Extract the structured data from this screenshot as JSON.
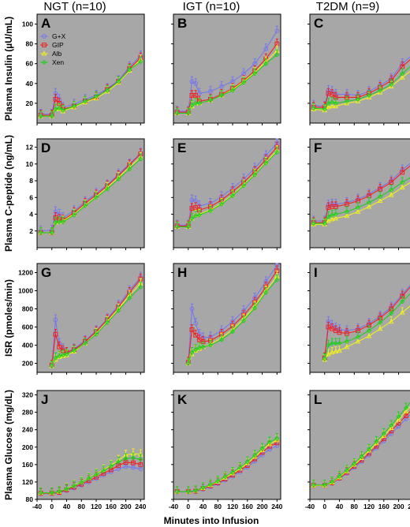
{
  "figure": {
    "column_titles": [
      "NGT (n=10)",
      "IGT (n=10)",
      "T2DM (n=9)"
    ],
    "row_labels": [
      "Plasma Insulin (µU/mL)",
      "Plasma C-peptide (ng/mL)",
      "ISR (pmoles/min)",
      "Plasma Glucose (mg/dL)"
    ],
    "x_label": "Minutes into Infusion",
    "x_ticks": [
      "-40",
      "0",
      "40",
      "80",
      "120",
      "160",
      "200",
      "240"
    ],
    "y_ticks": [
      [
        "20",
        "40",
        "60",
        "80",
        "100"
      ],
      [
        "2",
        "4",
        "6",
        "8",
        "10",
        "12"
      ],
      [
        "200",
        "400",
        "600",
        "800",
        "1000",
        "1200"
      ],
      [
        "80",
        "120",
        "160",
        "200",
        "240",
        "280",
        "320"
      ]
    ],
    "legend": [
      "G+X",
      "GIP",
      "Alb",
      "Xen"
    ],
    "colors": {
      "G+X": "#7777ee",
      "GIP": "#ee2222",
      "Alb": "#eeee22",
      "Xen": "#22cc22",
      "panel_bg": "#a7a7a7"
    }
  },
  "chart_data": [
    {
      "panel": "A",
      "type": "line",
      "group": "NGT (n=10)",
      "ylabel": "Plasma Insulin (µU/mL)",
      "ylim": [
        0,
        110
      ],
      "x": [
        -30,
        0,
        10,
        20,
        30,
        60,
        90,
        120,
        150,
        180,
        210,
        240
      ],
      "series": [
        {
          "name": "G+X",
          "values": [
            9,
            9,
            30,
            24,
            16,
            19,
            24,
            28,
            35,
            43,
            57,
            68
          ]
        },
        {
          "name": "GIP",
          "values": [
            8,
            8,
            24,
            20,
            14,
            17,
            22,
            26,
            34,
            42,
            55,
            66
          ]
        },
        {
          "name": "Alb",
          "values": [
            7,
            7,
            14,
            14,
            12,
            16,
            21,
            25,
            32,
            41,
            53,
            64
          ]
        },
        {
          "name": "Xen",
          "values": [
            7,
            7,
            14,
            15,
            13,
            17,
            22,
            27,
            33,
            42,
            54,
            62
          ]
        }
      ]
    },
    {
      "panel": "B",
      "type": "line",
      "group": "IGT (n=10)",
      "ylabel": "Plasma Insulin (µU/mL)",
      "ylim": [
        0,
        110
      ],
      "x": [
        -30,
        0,
        10,
        20,
        30,
        60,
        90,
        120,
        150,
        180,
        210,
        240
      ],
      "series": [
        {
          "name": "G+X",
          "values": [
            12,
            12,
            42,
            40,
            30,
            32,
            37,
            42,
            50,
            60,
            75,
            93
          ]
        },
        {
          "name": "GIP",
          "values": [
            11,
            11,
            28,
            28,
            22,
            24,
            29,
            35,
            43,
            53,
            65,
            80
          ]
        },
        {
          "name": "Alb",
          "values": [
            10,
            10,
            17,
            20,
            20,
            23,
            28,
            34,
            42,
            51,
            62,
            73
          ]
        },
        {
          "name": "Xen",
          "values": [
            10,
            10,
            18,
            20,
            20,
            23,
            28,
            33,
            41,
            50,
            60,
            69
          ]
        }
      ]
    },
    {
      "panel": "C",
      "type": "line",
      "group": "T2DM (n=9)",
      "ylabel": "Plasma Insulin (µU/mL)",
      "ylim": [
        0,
        110
      ],
      "x": [
        -30,
        0,
        10,
        20,
        30,
        60,
        90,
        120,
        150,
        180,
        210,
        240
      ],
      "series": [
        {
          "name": "G+X",
          "values": [
            18,
            17,
            33,
            32,
            29,
            29,
            28,
            32,
            38,
            45,
            60,
            70
          ]
        },
        {
          "name": "GIP",
          "values": [
            16,
            16,
            30,
            29,
            26,
            26,
            26,
            30,
            36,
            43,
            57,
            67
          ]
        },
        {
          "name": "Alb",
          "values": [
            14,
            13,
            16,
            17,
            17,
            20,
            22,
            26,
            31,
            37,
            46,
            55
          ]
        },
        {
          "name": "Xen",
          "values": [
            15,
            14,
            20,
            21,
            20,
            22,
            24,
            28,
            33,
            39,
            50,
            60
          ]
        }
      ]
    },
    {
      "panel": "D",
      "type": "line",
      "group": "NGT (n=10)",
      "ylabel": "Plasma C-peptide (ng/mL)",
      "ylim": [
        0,
        13
      ],
      "x": [
        -30,
        0,
        10,
        20,
        30,
        60,
        90,
        120,
        150,
        180,
        210,
        240
      ],
      "series": [
        {
          "name": "G+X",
          "values": [
            2.0,
            2.1,
            4.3,
            4.0,
            3.6,
            4.4,
            5.5,
            6.5,
            7.5,
            8.8,
            10.0,
            11.3
          ]
        },
        {
          "name": "GIP",
          "values": [
            1.8,
            1.8,
            3.6,
            3.4,
            3.3,
            4.2,
            5.3,
            6.3,
            7.4,
            8.6,
            9.9,
            11.2
          ]
        },
        {
          "name": "Alb",
          "values": [
            1.8,
            1.8,
            3.0,
            3.1,
            3.2,
            4.0,
            5.1,
            6.1,
            7.2,
            8.4,
            9.6,
            10.8
          ]
        },
        {
          "name": "Xen",
          "values": [
            1.8,
            1.8,
            3.0,
            3.1,
            3.1,
            3.9,
            5.0,
            6.0,
            7.0,
            8.2,
            9.4,
            10.6
          ]
        }
      ]
    },
    {
      "panel": "E",
      "type": "line",
      "group": "IGT (n=10)",
      "ylabel": "Plasma C-peptide (ng/mL)",
      "ylim": [
        0,
        13
      ],
      "x": [
        -30,
        0,
        10,
        20,
        30,
        60,
        90,
        120,
        150,
        180,
        210,
        240
      ],
      "series": [
        {
          "name": "G+X",
          "values": [
            2.7,
            2.7,
            5.7,
            5.6,
            5.0,
            5.3,
            6.1,
            7.1,
            8.2,
            9.5,
            11.0,
            12.5
          ]
        },
        {
          "name": "GIP",
          "values": [
            2.6,
            2.6,
            4.7,
            4.8,
            4.5,
            4.9,
            5.7,
            6.7,
            7.8,
            9.1,
            10.5,
            12.0
          ]
        },
        {
          "name": "Alb",
          "values": [
            2.5,
            2.5,
            3.5,
            3.9,
            4.0,
            4.5,
            5.3,
            6.3,
            7.5,
            8.8,
            10.2,
            11.6
          ]
        },
        {
          "name": "Xen",
          "values": [
            2.5,
            2.5,
            3.5,
            3.8,
            3.9,
            4.4,
            5.2,
            6.2,
            7.4,
            8.7,
            10.1,
            11.4
          ]
        }
      ]
    },
    {
      "panel": "F",
      "type": "line",
      "group": "T2DM (n=9)",
      "ylabel": "Plasma C-peptide (ng/mL)",
      "ylim": [
        0,
        13
      ],
      "x": [
        -30,
        0,
        10,
        20,
        30,
        60,
        90,
        120,
        150,
        180,
        210,
        240
      ],
      "series": [
        {
          "name": "G+X",
          "values": [
            3.2,
            3.2,
            5.1,
            5.2,
            5.2,
            5.4,
            5.8,
            6.4,
            7.2,
            8.0,
            9.3,
            10.4
          ]
        },
        {
          "name": "GIP",
          "values": [
            3.0,
            3.0,
            4.8,
            4.9,
            4.9,
            5.2,
            5.6,
            6.2,
            7.0,
            7.8,
            9.0,
            10.1
          ]
        },
        {
          "name": "Alb",
          "values": [
            2.8,
            2.8,
            3.2,
            3.4,
            3.5,
            3.8,
            4.3,
            4.9,
            5.6,
            6.3,
            7.2,
            8.0
          ]
        },
        {
          "name": "Xen",
          "values": [
            2.9,
            2.9,
            3.7,
            3.9,
            4.0,
            4.3,
            4.8,
            5.4,
            6.1,
            6.9,
            7.8,
            8.6
          ]
        }
      ]
    },
    {
      "panel": "G",
      "type": "line",
      "group": "NGT (n=10)",
      "ylabel": "ISR (pmoles/min)",
      "ylim": [
        100,
        1300
      ],
      "x": [
        0,
        10,
        20,
        30,
        40,
        60,
        90,
        120,
        150,
        180,
        210,
        240
      ],
      "series": [
        {
          "name": "G+X",
          "values": [
            180,
            680,
            420,
            360,
            320,
            360,
            450,
            560,
            690,
            840,
            1000,
            1150
          ]
        },
        {
          "name": "GIP",
          "values": [
            180,
            520,
            380,
            340,
            320,
            350,
            440,
            550,
            680,
            820,
            980,
            1130
          ]
        },
        {
          "name": "Alb",
          "values": [
            170,
            240,
            270,
            280,
            290,
            330,
            420,
            530,
            660,
            800,
            950,
            1080
          ]
        },
        {
          "name": "Xen",
          "values": [
            170,
            260,
            280,
            290,
            300,
            340,
            420,
            520,
            650,
            780,
            920,
            1040
          ]
        }
      ]
    },
    {
      "panel": "H",
      "type": "line",
      "group": "IGT (n=10)",
      "ylabel": "ISR (pmoles/min)",
      "ylim": [
        100,
        1300
      ],
      "x": [
        0,
        10,
        20,
        30,
        40,
        60,
        90,
        120,
        150,
        180,
        210,
        240
      ],
      "series": [
        {
          "name": "G+X",
          "values": [
            210,
            800,
            640,
            520,
            480,
            490,
            560,
            660,
            780,
            920,
            1100,
            1280
          ]
        },
        {
          "name": "GIP",
          "values": [
            210,
            570,
            510,
            460,
            440,
            450,
            520,
            610,
            730,
            870,
            1040,
            1220
          ]
        },
        {
          "name": "Alb",
          "values": [
            200,
            300,
            340,
            360,
            380,
            410,
            480,
            570,
            690,
            830,
            1000,
            1160
          ]
        },
        {
          "name": "Xen",
          "values": [
            200,
            320,
            350,
            370,
            380,
            400,
            460,
            550,
            670,
            810,
            980,
            1120
          ]
        }
      ]
    },
    {
      "panel": "I",
      "type": "line",
      "group": "T2DM (n=9)",
      "ylabel": "ISR (pmoles/min)",
      "ylim": [
        100,
        1300
      ],
      "x": [
        0,
        10,
        20,
        30,
        40,
        60,
        90,
        120,
        150,
        180,
        210,
        240
      ],
      "series": [
        {
          "name": "G+X",
          "values": [
            260,
            660,
            620,
            590,
            570,
            560,
            580,
            640,
            720,
            820,
            960,
            1100
          ]
        },
        {
          "name": "GIP",
          "values": [
            260,
            600,
            580,
            560,
            540,
            530,
            560,
            620,
            700,
            800,
            940,
            1080
          ]
        },
        {
          "name": "Alb",
          "values": [
            240,
            300,
            320,
            330,
            340,
            380,
            440,
            500,
            580,
            660,
            760,
            860
          ]
        },
        {
          "name": "Xen",
          "values": [
            250,
            400,
            420,
            420,
            420,
            440,
            490,
            560,
            650,
            750,
            880,
            1000
          ]
        }
      ]
    },
    {
      "panel": "J",
      "type": "line",
      "group": "NGT (n=10)",
      "ylabel": "Plasma Glucose (mg/dL)",
      "ylim": [
        80,
        330
      ],
      "x": [
        -30,
        0,
        20,
        40,
        60,
        80,
        100,
        120,
        140,
        160,
        180,
        200,
        220,
        240
      ],
      "series": [
        {
          "name": "G+X",
          "values": [
            93,
            93,
            95,
            100,
            106,
            113,
            120,
            128,
            136,
            143,
            150,
            155,
            153,
            150
          ]
        },
        {
          "name": "GIP",
          "values": [
            94,
            94,
            96,
            102,
            108,
            115,
            123,
            131,
            140,
            148,
            158,
            165,
            164,
            160
          ]
        },
        {
          "name": "Alb",
          "values": [
            95,
            95,
            98,
            105,
            112,
            120,
            129,
            138,
            148,
            158,
            170,
            182,
            185,
            183
          ]
        },
        {
          "name": "Xen",
          "values": [
            95,
            95,
            98,
            104,
            111,
            119,
            128,
            137,
            146,
            156,
            166,
            174,
            175,
            172
          ]
        }
      ]
    },
    {
      "panel": "K",
      "type": "line",
      "group": "IGT (n=10)",
      "ylabel": "Plasma Glucose (mg/dL)",
      "ylim": [
        80,
        330
      ],
      "x": [
        -30,
        0,
        20,
        40,
        60,
        80,
        100,
        120,
        140,
        160,
        180,
        200,
        220,
        240
      ],
      "series": [
        {
          "name": "G+X",
          "values": [
            97,
            97,
            98,
            103,
            109,
            116,
            124,
            133,
            143,
            154,
            168,
            182,
            195,
            203
          ]
        },
        {
          "name": "GIP",
          "values": [
            98,
            98,
            99,
            105,
            111,
            118,
            127,
            136,
            147,
            158,
            173,
            188,
            202,
            210
          ]
        },
        {
          "name": "Alb",
          "values": [
            98,
            98,
            100,
            106,
            113,
            121,
            130,
            140,
            151,
            163,
            178,
            193,
            207,
            216
          ]
        },
        {
          "name": "Xen",
          "values": [
            98,
            98,
            100,
            107,
            114,
            122,
            132,
            142,
            153,
            166,
            181,
            197,
            212,
            220
          ]
        }
      ]
    },
    {
      "panel": "L",
      "type": "line",
      "group": "T2DM (n=9)",
      "ylabel": "Plasma Glucose (mg/dL)",
      "ylim": [
        80,
        330
      ],
      "x": [
        -30,
        0,
        20,
        40,
        60,
        80,
        100,
        120,
        140,
        160,
        180,
        200,
        220,
        240
      ],
      "series": [
        {
          "name": "G+X",
          "values": [
            112,
            112,
            117,
            128,
            140,
            153,
            167,
            182,
            198,
            214,
            231,
            248,
            265,
            282
          ]
        },
        {
          "name": "GIP",
          "values": [
            112,
            112,
            118,
            129,
            142,
            156,
            170,
            186,
            202,
            219,
            237,
            255,
            272,
            290
          ]
        },
        {
          "name": "Alb",
          "values": [
            112,
            112,
            119,
            131,
            145,
            160,
            175,
            192,
            209,
            226,
            244,
            263,
            282,
            302
          ]
        },
        {
          "name": "Xen",
          "values": [
            113,
            113,
            120,
            133,
            147,
            162,
            178,
            195,
            213,
            231,
            250,
            270,
            290,
            312
          ]
        }
      ]
    }
  ]
}
